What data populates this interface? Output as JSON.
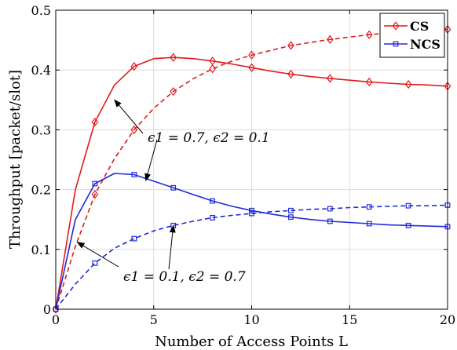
{
  "chart_data": {
    "type": "line",
    "title": "",
    "xlabel": "Number of Access Points L",
    "ylabel": "Throughput [packet/slot]",
    "xlim": [
      0,
      20
    ],
    "ylim": [
      0,
      0.5
    ],
    "xticks": [
      "0",
      "5",
      "10",
      "15",
      "20"
    ],
    "yticks": [
      "0",
      "0.1",
      "0.2",
      "0.3",
      "0.4",
      "0.5"
    ],
    "grid": true,
    "legend_position": "top-right",
    "legend": [
      {
        "name": "CS",
        "color": "#e41a1c",
        "marker": "diamond"
      },
      {
        "name": "NCS",
        "color": "#1f2bd8",
        "marker": "square"
      }
    ],
    "series": [
      {
        "group": "CS",
        "style": "solid",
        "color": "#e41a1c",
        "marker": "diamond",
        "x": [
          0,
          1,
          2,
          3,
          4,
          5,
          6,
          7,
          8,
          9,
          10,
          11,
          12,
          13,
          14,
          15,
          16,
          17,
          18,
          19,
          20
        ],
        "y": [
          0,
          0.2,
          0.313,
          0.375,
          0.406,
          0.419,
          0.421,
          0.419,
          0.415,
          0.41,
          0.404,
          0.398,
          0.393,
          0.389,
          0.386,
          0.383,
          0.38,
          0.378,
          0.376,
          0.375,
          0.373
        ],
        "marked_x": [
          0,
          2,
          4,
          6,
          8,
          10,
          12,
          14,
          16,
          18,
          20
        ]
      },
      {
        "group": "CS",
        "style": "dashed",
        "color": "#e41a1c",
        "marker": "diamond",
        "x": [
          0,
          1,
          2,
          3,
          4,
          5,
          6,
          7,
          8,
          9,
          10,
          11,
          12,
          13,
          14,
          15,
          16,
          17,
          18,
          19,
          20
        ],
        "y": [
          0,
          0.105,
          0.192,
          0.252,
          0.3,
          0.336,
          0.364,
          0.385,
          0.402,
          0.415,
          0.425,
          0.433,
          0.441,
          0.446,
          0.451,
          0.455,
          0.459,
          0.462,
          0.464,
          0.466,
          0.468
        ],
        "marked_x": [
          0,
          2,
          4,
          6,
          8,
          10,
          12,
          14,
          16,
          18,
          20
        ]
      },
      {
        "group": "NCS",
        "style": "solid",
        "color": "#1f2bd8",
        "marker": "square",
        "x": [
          0,
          1,
          2,
          3,
          4,
          5,
          6,
          7,
          8,
          9,
          10,
          11,
          12,
          13,
          14,
          15,
          16,
          17,
          18,
          19,
          20
        ],
        "y": [
          0,
          0.15,
          0.21,
          0.227,
          0.225,
          0.214,
          0.203,
          0.192,
          0.181,
          0.172,
          0.165,
          0.159,
          0.154,
          0.15,
          0.147,
          0.145,
          0.143,
          0.141,
          0.14,
          0.139,
          0.138
        ],
        "marked_x": [
          0,
          2,
          4,
          6,
          8,
          10,
          12,
          14,
          16,
          18,
          20
        ]
      },
      {
        "group": "NCS",
        "style": "dashed",
        "color": "#1f2bd8",
        "marker": "square",
        "x": [
          0,
          1,
          2,
          3,
          4,
          5,
          6,
          7,
          8,
          9,
          10,
          11,
          12,
          13,
          14,
          15,
          16,
          17,
          18,
          19,
          20
        ],
        "y": [
          0,
          0.042,
          0.077,
          0.102,
          0.118,
          0.131,
          0.14,
          0.147,
          0.153,
          0.157,
          0.16,
          0.163,
          0.165,
          0.167,
          0.168,
          0.17,
          0.171,
          0.172,
          0.173,
          0.173,
          0.174
        ],
        "marked_x": [
          0,
          2,
          4,
          6,
          8,
          10,
          12,
          14,
          16,
          18,
          20
        ]
      }
    ],
    "annotations": [
      {
        "text": "ϵ1 = 0.7, ϵ2 = 0.1",
        "targets": [
          {
            "x": 3,
            "y": 0.35
          },
          {
            "x": 4.6,
            "y": 0.215
          }
        ]
      },
      {
        "text": "ϵ1 = 0.1, ϵ2 = 0.7",
        "targets": [
          {
            "x": 1.1,
            "y": 0.112
          },
          {
            "x": 6.0,
            "y": 0.14
          }
        ]
      }
    ]
  }
}
